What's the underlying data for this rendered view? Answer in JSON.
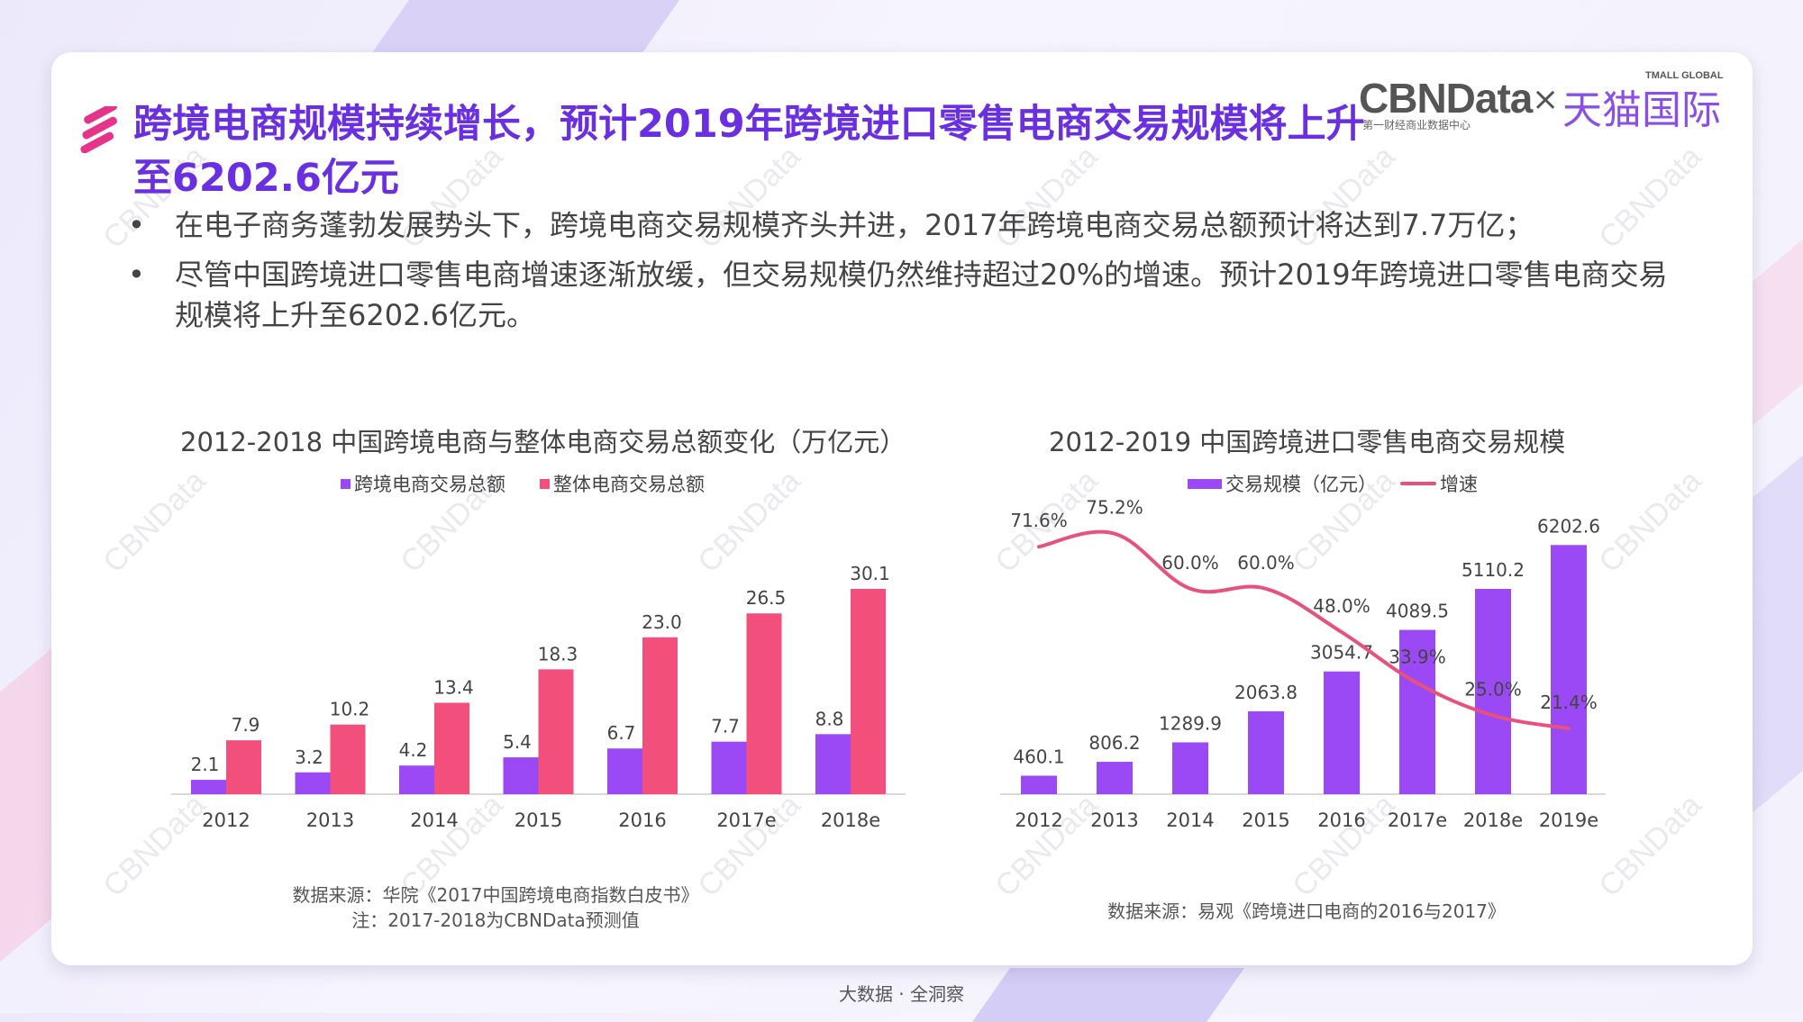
{
  "title": "跨境电商规模持续增长，预计2019年跨境进口零售电商交易规模将上升至6202.6亿元",
  "logo": {
    "cbn": "CBNData",
    "cbn_sub": "第一财经商业数据中心",
    "times": "×",
    "tmall": "天猫国际",
    "tmall_en": "TMALL GLOBAL"
  },
  "bullets": [
    "在电子商务蓬勃发展势头下，跨境电商交易规模齐头并进，2017年跨境电商交易总额预计将达到7.7万亿；",
    "尽管中国跨境进口零售电商增速逐渐放缓，但交易规模仍然维持超过20%的增速。预计2019年跨境进口零售电商交易规模将上升至6202.6亿元。"
  ],
  "bullet_mark": "•",
  "watermark": "CBNData",
  "colors": {
    "purple": "#9b49f5",
    "pink": "#f24f7c",
    "title": "#6a2fe0"
  },
  "chart_data": [
    {
      "type": "bar",
      "title": "2012-2018 中国跨境电商与整体电商交易总额变化（万亿元）",
      "categories": [
        "2012",
        "2013",
        "2014",
        "2015",
        "2016",
        "2017e",
        "2018e"
      ],
      "series": [
        {
          "name": "跨境电商交易总额",
          "color": "#9b49f5",
          "values": [
            2.1,
            3.2,
            4.2,
            5.4,
            6.7,
            7.7,
            8.8
          ]
        },
        {
          "name": "整体电商交易总额",
          "color": "#f24f7c",
          "values": [
            7.9,
            10.2,
            13.4,
            18.3,
            23.0,
            26.5,
            30.1
          ]
        }
      ],
      "value_labels": [
        [
          "2.1",
          "3.2",
          "4.2",
          "5.4",
          "6.7",
          "7.7",
          "8.8"
        ],
        [
          "7.9",
          "10.2",
          "13.4",
          "18.3",
          "23.0",
          "26.5",
          "30.1"
        ]
      ],
      "ylim": [
        0,
        33
      ],
      "source": "数据来源：华院《2017中国跨境电商指数白皮书》",
      "note": "注：2017-2018为CBNData预测值"
    },
    {
      "type": "bar+line",
      "title": "2012-2019 中国跨境进口零售电商交易规模",
      "categories": [
        "2012",
        "2013",
        "2014",
        "2015",
        "2016",
        "2017e",
        "2018e",
        "2019e"
      ],
      "series": [
        {
          "name": "交易规模（亿元）",
          "kind": "bar",
          "color": "#9b49f5",
          "values": [
            460.1,
            806.2,
            1289.9,
            2063.8,
            3054.7,
            4089.5,
            5110.2,
            6202.6
          ]
        },
        {
          "name": "增速",
          "kind": "line",
          "color": "#e8517c",
          "values": [
            71.6,
            75.2,
            60.0,
            60.0,
            48.0,
            33.9,
            25.0,
            21.4
          ]
        }
      ],
      "value_labels": [
        [
          "460.1",
          "806.2",
          "1289.9",
          "2063.8",
          "3054.7",
          "4089.5",
          "5110.2",
          "6202.6"
        ],
        [
          "71.6%",
          "75.2%",
          "60.0%",
          "60.0%",
          "48.0%",
          "33.9%",
          "25.0%",
          "21.4%"
        ]
      ],
      "ylim": [
        0,
        6500
      ],
      "growth_range": [
        0,
        80
      ],
      "source": "数据来源：易观《跨境进口电商的2016与2017》"
    }
  ],
  "footer": "大数据 · 全洞察"
}
